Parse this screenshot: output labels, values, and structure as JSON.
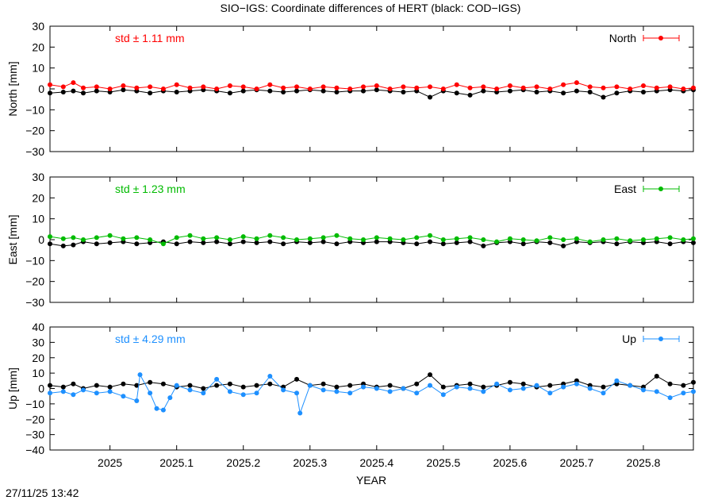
{
  "title": "SIO−IGS: Coordinate differences of HERT (black: COD−IGS)",
  "xlabel": "YEAR",
  "timestamp": "27/11/25 13:42",
  "x_ticks": [
    "2025",
    "2025.1",
    "2025.2",
    "2025.3",
    "2025.4",
    "2025.5",
    "2025.6",
    "2025.7",
    "2025.8"
  ],
  "reference_color": "#000000",
  "chart_data": [
    {
      "type": "scatter",
      "ylabel": "North [mm]",
      "legend": "North",
      "std_label": "std ± 1.11 mm",
      "color": "#ff0000",
      "xlim": [
        2024.91,
        2025.875
      ],
      "ylim": [
        -30,
        30
      ],
      "y_ticks": [
        "30",
        "20",
        "10",
        "0",
        "−10",
        "−20",
        "−30"
      ],
      "series": [
        {
          "x": [
            2024.91,
            2024.93,
            2024.945,
            2024.96,
            2024.98,
            2025.0,
            2025.02,
            2025.04,
            2025.06,
            2025.08,
            2025.1,
            2025.12,
            2025.14,
            2025.16,
            2025.18,
            2025.2,
            2025.22,
            2025.24,
            2025.26,
            2025.28,
            2025.3,
            2025.32,
            2025.34,
            2025.36,
            2025.38,
            2025.4,
            2025.42,
            2025.44,
            2025.46,
            2025.48,
            2025.5,
            2025.52,
            2025.54,
            2025.56,
            2025.58,
            2025.6,
            2025.62,
            2025.64,
            2025.66,
            2025.68,
            2025.7,
            2025.72,
            2025.74,
            2025.76,
            2025.78,
            2025.8,
            2025.82,
            2025.84,
            2025.86,
            2025.875
          ],
          "y": [
            2,
            1,
            3,
            0.5,
            1,
            0,
            1.5,
            0.5,
            1,
            0,
            2,
            0.5,
            1,
            0,
            1.5,
            1,
            0,
            2,
            0.5,
            1,
            0,
            1,
            0.5,
            0,
            1,
            1.5,
            0,
            1,
            0.5,
            1,
            0,
            2,
            0.5,
            1,
            0,
            1.5,
            0.5,
            1,
            0,
            2,
            3,
            1,
            0.5,
            1,
            0,
            1.5,
            0.5,
            1,
            0,
            0.5
          ]
        },
        {
          "x": [
            2024.91,
            2024.93,
            2024.945,
            2024.96,
            2024.98,
            2025.0,
            2025.02,
            2025.04,
            2025.06,
            2025.08,
            2025.1,
            2025.12,
            2025.14,
            2025.16,
            2025.18,
            2025.2,
            2025.22,
            2025.24,
            2025.26,
            2025.28,
            2025.3,
            2025.32,
            2025.34,
            2025.36,
            2025.38,
            2025.4,
            2025.42,
            2025.44,
            2025.46,
            2025.48,
            2025.5,
            2025.52,
            2025.54,
            2025.56,
            2025.58,
            2025.6,
            2025.62,
            2025.64,
            2025.66,
            2025.68,
            2025.7,
            2025.72,
            2025.74,
            2025.76,
            2025.78,
            2025.8,
            2025.82,
            2025.84,
            2025.86,
            2025.875
          ],
          "y": [
            -2,
            -1.5,
            -1,
            -2,
            -1,
            -1.5,
            -0.5,
            -1,
            -2,
            -1,
            -1.5,
            -1,
            -0.5,
            -1,
            -2,
            -1,
            -0.5,
            -1,
            -1.5,
            -1,
            -0.5,
            -1,
            -1.5,
            -1,
            -1,
            -0.5,
            -1,
            -1.5,
            -1,
            -4,
            -1,
            -2,
            -3,
            -1,
            -1.5,
            -1,
            -0.5,
            -1.5,
            -1,
            -2,
            -1,
            -1.5,
            -4,
            -2,
            -1,
            -1.5,
            -1,
            -0.5,
            -1,
            -0.5
          ]
        }
      ]
    },
    {
      "type": "scatter",
      "ylabel": "East [mm]",
      "legend": "East",
      "std_label": "std ± 1.23 mm",
      "color": "#00bb00",
      "xlim": [
        2024.91,
        2025.875
      ],
      "ylim": [
        -30,
        30
      ],
      "y_ticks": [
        "30",
        "20",
        "10",
        "0",
        "−10",
        "−20",
        "−30"
      ],
      "series": [
        {
          "x": [
            2024.91,
            2024.93,
            2024.945,
            2024.96,
            2024.98,
            2025.0,
            2025.02,
            2025.04,
            2025.06,
            2025.08,
            2025.1,
            2025.12,
            2025.14,
            2025.16,
            2025.18,
            2025.2,
            2025.22,
            2025.24,
            2025.26,
            2025.28,
            2025.3,
            2025.32,
            2025.34,
            2025.36,
            2025.38,
            2025.4,
            2025.42,
            2025.44,
            2025.46,
            2025.48,
            2025.5,
            2025.52,
            2025.54,
            2025.56,
            2025.58,
            2025.6,
            2025.62,
            2025.64,
            2025.66,
            2025.68,
            2025.7,
            2025.72,
            2025.74,
            2025.76,
            2025.78,
            2025.8,
            2025.82,
            2025.84,
            2025.86,
            2025.875
          ],
          "y": [
            1.5,
            0.5,
            1,
            0,
            1,
            2,
            0.5,
            1,
            0,
            -2,
            1,
            2,
            0.5,
            1,
            0,
            1.5,
            0.5,
            2,
            1,
            0,
            0.5,
            1,
            2,
            0.5,
            0,
            1,
            0.5,
            0,
            1,
            2,
            0,
            0.5,
            1,
            0,
            -1,
            0.5,
            0,
            -0.5,
            1,
            0,
            0.5,
            -1,
            0,
            0.5,
            -0.5,
            0,
            0.5,
            1,
            0,
            0.5
          ]
        },
        {
          "x": [
            2024.91,
            2024.93,
            2024.945,
            2024.96,
            2024.98,
            2025.0,
            2025.02,
            2025.04,
            2025.06,
            2025.08,
            2025.1,
            2025.12,
            2025.14,
            2025.16,
            2025.18,
            2025.2,
            2025.22,
            2025.24,
            2025.26,
            2025.28,
            2025.3,
            2025.32,
            2025.34,
            2025.36,
            2025.38,
            2025.4,
            2025.42,
            2025.44,
            2025.46,
            2025.48,
            2025.5,
            2025.52,
            2025.54,
            2025.56,
            2025.58,
            2025.6,
            2025.62,
            2025.64,
            2025.66,
            2025.68,
            2025.7,
            2025.72,
            2025.74,
            2025.76,
            2025.78,
            2025.8,
            2025.82,
            2025.84,
            2025.86,
            2025.875
          ],
          "y": [
            -2,
            -3,
            -2.5,
            -1,
            -2,
            -1.5,
            -1,
            -2,
            -1.5,
            -1,
            -2,
            -1,
            -1.5,
            -1,
            -2,
            -1,
            -1.5,
            -1,
            -2,
            -1,
            -1.5,
            -1,
            -2,
            -1,
            -1.5,
            -1,
            -1,
            -1.5,
            -2,
            -1,
            -2,
            -1.5,
            -1,
            -3,
            -1.5,
            -1,
            -2,
            -1,
            -1.5,
            -3,
            -1,
            -1.5,
            -1,
            -2,
            -1,
            -1.5,
            -1,
            -2,
            -1,
            -1.5
          ]
        }
      ]
    },
    {
      "type": "scatter",
      "ylabel": "Up [mm]",
      "legend": "Up",
      "std_label": "std ± 4.29 mm",
      "color": "#1e90ff",
      "xlim": [
        2024.91,
        2025.875
      ],
      "ylim": [
        -40,
        40
      ],
      "y_ticks": [
        "40",
        "30",
        "20",
        "10",
        "0",
        "−10",
        "−20",
        "−30",
        "−40"
      ],
      "series": [
        {
          "x": [
            2024.91,
            2024.93,
            2024.945,
            2024.96,
            2024.98,
            2025.0,
            2025.02,
            2025.04,
            2025.045,
            2025.06,
            2025.07,
            2025.08,
            2025.09,
            2025.1,
            2025.12,
            2025.14,
            2025.16,
            2025.18,
            2025.2,
            2025.22,
            2025.24,
            2025.26,
            2025.28,
            2025.285,
            2025.3,
            2025.32,
            2025.34,
            2025.36,
            2025.38,
            2025.4,
            2025.42,
            2025.44,
            2025.46,
            2025.48,
            2025.5,
            2025.52,
            2025.54,
            2025.56,
            2025.58,
            2025.6,
            2025.62,
            2025.64,
            2025.66,
            2025.68,
            2025.7,
            2025.72,
            2025.74,
            2025.76,
            2025.78,
            2025.8,
            2025.82,
            2025.84,
            2025.86,
            2025.875
          ],
          "y": [
            -3,
            -2,
            -4,
            -1,
            -3,
            -2,
            -5,
            -8,
            9,
            -3,
            -13,
            -14,
            -6,
            2,
            -1,
            -3,
            6,
            -2,
            -4,
            -3,
            8,
            -1,
            -3,
            -16,
            2,
            -1,
            -2,
            -3,
            1,
            0,
            -2,
            0,
            -3,
            2,
            -4,
            1,
            0,
            -2,
            3,
            -1,
            0,
            2,
            -3,
            1,
            3,
            0,
            -3,
            5,
            2,
            -1,
            -2,
            -6,
            -3,
            -2
          ]
        },
        {
          "x": [
            2024.91,
            2024.93,
            2024.945,
            2024.96,
            2024.98,
            2025.0,
            2025.02,
            2025.04,
            2025.06,
            2025.08,
            2025.1,
            2025.12,
            2025.14,
            2025.16,
            2025.18,
            2025.2,
            2025.22,
            2025.24,
            2025.26,
            2025.28,
            2025.3,
            2025.32,
            2025.34,
            2025.36,
            2025.38,
            2025.4,
            2025.42,
            2025.44,
            2025.46,
            2025.48,
            2025.5,
            2025.52,
            2025.54,
            2025.56,
            2025.58,
            2025.6,
            2025.62,
            2025.64,
            2025.66,
            2025.68,
            2025.7,
            2025.72,
            2025.74,
            2025.76,
            2025.78,
            2025.8,
            2025.82,
            2025.84,
            2025.86,
            2025.875
          ],
          "y": [
            2,
            1,
            3,
            0,
            2,
            1,
            3,
            2,
            4,
            3,
            1,
            2,
            0,
            2,
            3,
            1,
            2,
            3,
            1,
            6,
            2,
            3,
            1,
            2,
            3,
            1,
            2,
            0,
            3,
            9,
            1,
            2,
            3,
            1,
            2,
            4,
            3,
            1,
            2,
            3,
            5,
            2,
            1,
            3,
            2,
            1,
            8,
            3,
            2,
            4
          ]
        }
      ]
    }
  ]
}
